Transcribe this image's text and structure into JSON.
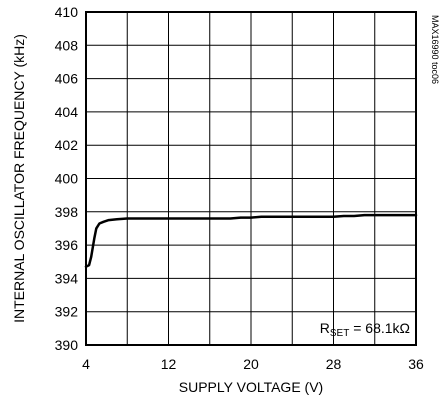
{
  "chart_data": {
    "type": "line",
    "title": "",
    "xlabel": "SUPPLY VOLTAGE (V)",
    "ylabel": "INTERNAL OSCILLATOR FREQUENCY (kHz)",
    "xlim": [
      4,
      36
    ],
    "ylim": [
      390,
      410
    ],
    "x_ticks": [
      4,
      12,
      20,
      28,
      36
    ],
    "x_tick_labels": [
      "4",
      "12",
      "20",
      "28",
      "36"
    ],
    "x_grid": [
      4,
      8,
      12,
      16,
      20,
      24,
      28,
      32,
      36
    ],
    "y_ticks": [
      390,
      392,
      394,
      396,
      398,
      400,
      402,
      404,
      406,
      408,
      410
    ],
    "y_tick_labels": [
      "390",
      "392",
      "394",
      "396",
      "398",
      "400",
      "402",
      "404",
      "406",
      "408",
      "410"
    ],
    "grid": true,
    "annotation": {
      "main": "R",
      "sub": "SET",
      "rest": " = 68.1kΩ"
    },
    "figure_code": "MAX16990 toc06",
    "series": [
      {
        "color": "#000000",
        "x": [
          4.0,
          4.3,
          4.5,
          4.8,
          5.0,
          5.3,
          5.7,
          6.2,
          7.0,
          8.0,
          10.0,
          12.0,
          15.0,
          18.0,
          19.0,
          20.0,
          21.0,
          22.0,
          25.0,
          28.0,
          29.0,
          30.0,
          31.0,
          33.0,
          36.0
        ],
        "y": [
          394.7,
          394.8,
          395.3,
          396.4,
          397.0,
          397.3,
          397.4,
          397.5,
          397.55,
          397.6,
          397.6,
          397.6,
          397.6,
          397.6,
          397.65,
          397.65,
          397.7,
          397.7,
          397.7,
          397.7,
          397.75,
          397.75,
          397.8,
          397.8,
          397.8
        ]
      }
    ]
  }
}
